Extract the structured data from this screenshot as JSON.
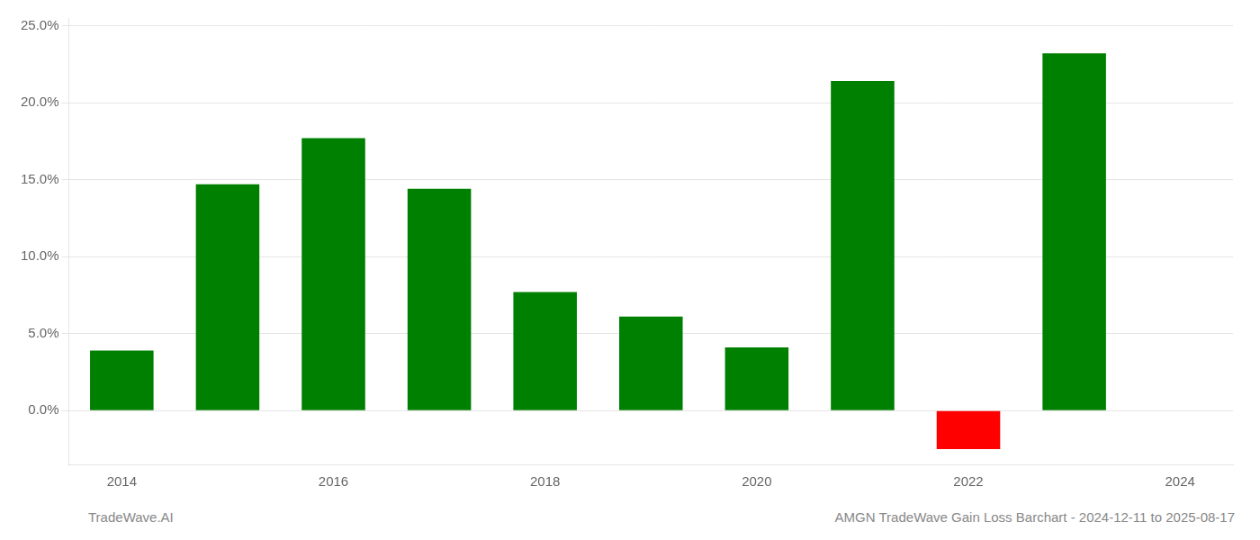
{
  "chart_data": {
    "type": "bar",
    "title": "AMGN TradeWave Gain Loss Barchart - 2024-12-11 to 2025-08-17",
    "annotations": [
      "TradeWave.AI"
    ],
    "categories": [
      "2014",
      null,
      "2016",
      null,
      "2018",
      null,
      "2020",
      null,
      "2022",
      null,
      "2024"
    ],
    "values": [
      3.9,
      14.7,
      17.7,
      14.4,
      7.7,
      6.1,
      4.1,
      21.4,
      -2.5,
      23.2,
      null
    ],
    "colors": [
      "#008000",
      "#008000",
      "#008000",
      "#008000",
      "#008000",
      "#008000",
      "#008000",
      "#008000",
      "#ff0000",
      "#008000",
      null
    ],
    "ylim": [
      -3.5,
      25.5
    ],
    "yticks": [
      {
        "value": 0,
        "label": "0.0%"
      },
      {
        "value": 5,
        "label": "5.0%"
      },
      {
        "value": 10,
        "label": "10.0%"
      },
      {
        "value": 15,
        "label": "15.0%"
      },
      {
        "value": 20,
        "label": "20.0%"
      },
      {
        "value": 25,
        "label": "25.0%"
      }
    ],
    "grid": true
  }
}
